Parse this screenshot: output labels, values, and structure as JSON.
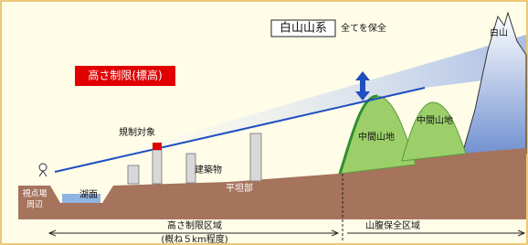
{
  "mountain_range": {
    "label": "白山山系",
    "note": "全てを保全"
  },
  "height_limit": "高さ制限(標高)",
  "regulated": "規制対象",
  "hakusan": "白山",
  "hills": [
    "中間山地",
    "中間山地"
  ],
  "building": "建築物",
  "plain": "平坦部",
  "lake": "湖面",
  "viewpoint": [
    "視点場",
    "周辺"
  ],
  "zones": {
    "height_zone": "高さ制限区域",
    "height_zone_note": "(概ね５km程度)",
    "slope_zone": "山腹保全区域"
  }
}
